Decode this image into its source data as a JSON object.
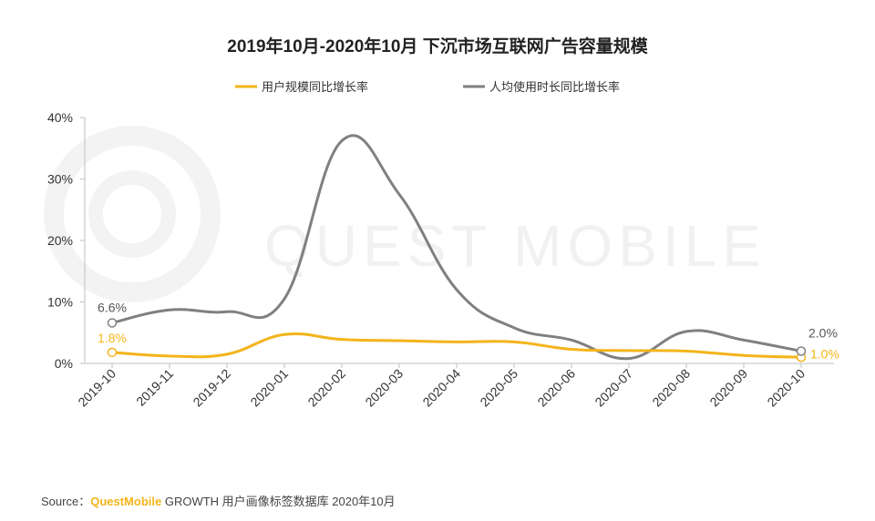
{
  "chart_data": {
    "type": "line",
    "title": "2019年10月-2020年10月 下沉市场互联网广告容量规模",
    "categories": [
      "2019-10",
      "2019-11",
      "2019-12",
      "2020-01",
      "2020-02",
      "2020-03",
      "2020-04",
      "2020-05",
      "2020-06",
      "2020-07",
      "2020-08",
      "2020-09",
      "2020-10"
    ],
    "ylim": [
      0,
      40
    ],
    "yticks": [
      "0%",
      "10%",
      "20%",
      "30%",
      "40%"
    ],
    "series": [
      {
        "name": "用户规模同比增长率",
        "color": "#f4b41a",
        "values": [
          1.8,
          1.2,
          1.5,
          4.7,
          3.9,
          3.7,
          3.5,
          3.5,
          2.3,
          2.1,
          2.0,
          1.3,
          1.0
        ]
      },
      {
        "name": "人均使用时长同比增长率",
        "color": "#808080",
        "values": [
          6.6,
          8.7,
          8.4,
          10.5,
          36.2,
          27.5,
          12.0,
          5.8,
          3.8,
          0.8,
          5.2,
          3.8,
          2.0
        ]
      }
    ],
    "annotations": [
      {
        "series": 0,
        "index": 0,
        "text": "1.8%"
      },
      {
        "series": 0,
        "index": 12,
        "text": "1.0%"
      },
      {
        "series": 1,
        "index": 0,
        "text": "6.6%"
      },
      {
        "series": 1,
        "index": 12,
        "text": "2.0%"
      }
    ],
    "watermark": "QUEST MOBILE"
  },
  "footer": {
    "prefix": "Source：",
    "brand": "QuestMobile",
    "text": " GROWTH 用户画像标签数据库 2020年10月"
  }
}
